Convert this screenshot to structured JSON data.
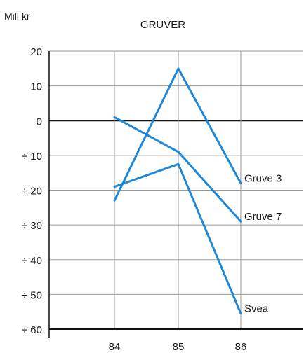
{
  "chart_data": {
    "type": "line",
    "title": "GRUVER",
    "ylabel": "Mill kr",
    "xlabel": "",
    "x": [
      84,
      85,
      86
    ],
    "x_tick_labels": [
      "84",
      "85",
      "86"
    ],
    "ylim": [
      -60,
      20
    ],
    "y_ticks": [
      20,
      10,
      0,
      -10,
      -20,
      -30,
      -40,
      -50,
      -60
    ],
    "y_tick_labels": [
      "20",
      "10",
      "0",
      "÷ 10",
      "÷ 20",
      "÷ 30",
      "÷ 40",
      "÷ 50",
      "÷ 60"
    ],
    "grid": true,
    "series": [
      {
        "name": "Gruve 3",
        "values": [
          -23,
          15,
          -18
        ]
      },
      {
        "name": "Gruve 7",
        "values": [
          1,
          -9,
          -29
        ]
      },
      {
        "name": "Svea",
        "values": [
          -19,
          -12.5,
          -55.5
        ]
      }
    ],
    "line_color": "#1e88d6",
    "grid_color": "#9a9a9a",
    "axis_color": "#111111"
  }
}
